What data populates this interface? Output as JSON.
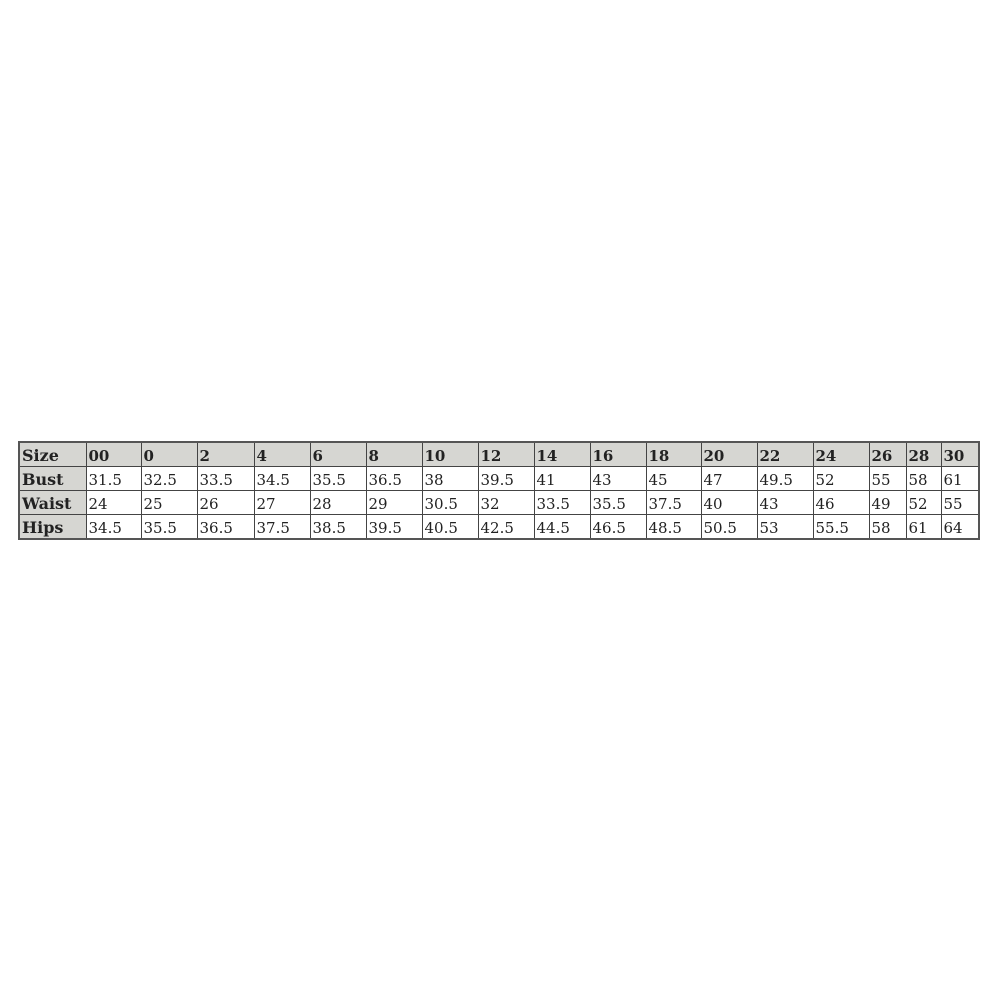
{
  "table": {
    "header": [
      "Size",
      "00",
      "0",
      "2",
      "4",
      "6",
      "8",
      "10",
      "12",
      "14",
      "16",
      "18",
      "20",
      "22",
      "24",
      "26",
      "28",
      "30"
    ],
    "rows": [
      {
        "label": "Bust",
        "values": [
          "31.5",
          "32.5",
          "33.5",
          "34.5",
          "35.5",
          "36.5",
          "38",
          "39.5",
          "41",
          "43",
          "45",
          "47",
          "49.5",
          "52",
          "55",
          "58",
          "61"
        ]
      },
      {
        "label": "Waist",
        "values": [
          "24",
          "25",
          "26",
          "27",
          "28",
          "29",
          "30.5",
          "32",
          "33.5",
          "35.5",
          "37.5",
          "40",
          "43",
          "46",
          "49",
          "52",
          "55"
        ]
      },
      {
        "label": "Hips",
        "values": [
          "34.5",
          "35.5",
          "36.5",
          "37.5",
          "38.5",
          "39.5",
          "40.5",
          "42.5",
          "44.5",
          "46.5",
          "48.5",
          "50.5",
          "53",
          "55.5",
          "58",
          "61",
          "64"
        ]
      }
    ]
  }
}
